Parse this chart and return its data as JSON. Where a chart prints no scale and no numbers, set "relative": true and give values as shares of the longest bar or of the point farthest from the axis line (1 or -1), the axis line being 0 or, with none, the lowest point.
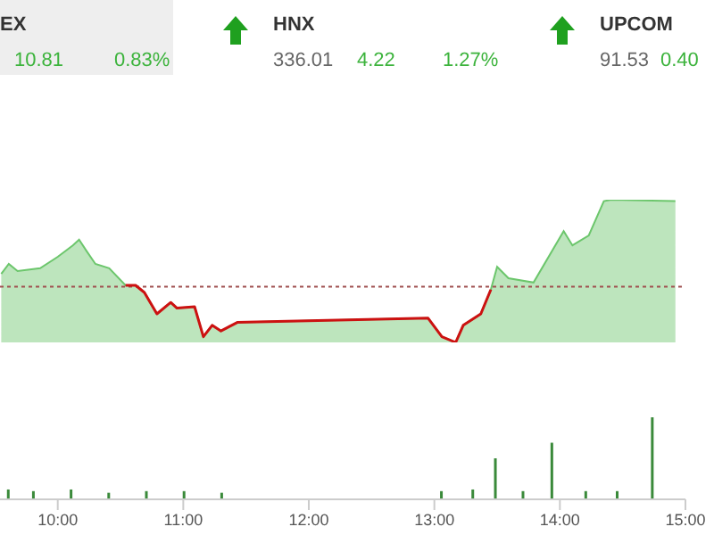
{
  "chart_data": [
    {
      "type": "area",
      "relative": true,
      "xlim": [
        9.54,
        15
      ],
      "tick_labels": false,
      "annotations": [
        "EX",
        "10.81",
        "0.83%",
        "HNX",
        "336.01",
        "4.22",
        "1.27%",
        "UPCOM",
        "91.53",
        "0.40"
      ],
      "x": [
        9.55,
        9.61,
        9.68,
        9.86,
        10.0,
        10.12,
        10.17,
        10.23,
        10.3,
        10.41,
        10.54,
        10.62,
        10.69,
        10.79,
        10.9,
        10.95,
        11.09,
        11.16,
        11.23,
        11.3,
        11.43,
        12.95,
        13.06,
        13.17,
        13.23,
        13.37,
        13.45,
        13.5,
        13.59,
        13.79,
        14.03,
        14.1,
        14.23,
        14.35,
        14.41,
        14.92
      ],
      "series": [
        {
          "color": "#6cc66c",
          "values": [
            0.48,
            0.55,
            0.5,
            0.52,
            0.6,
            0.68,
            0.72,
            0.64,
            0.55,
            0.52,
            0.4,
            0.4,
            0.35,
            0.2,
            0.28,
            0.24,
            0.25,
            0.04,
            0.12,
            0.08,
            0.14,
            0.17,
            0.04,
            0,
            0.12,
            0.2,
            0.37,
            0.53,
            0.45,
            0.42,
            0.78,
            0.68,
            0.75,
            0.99,
            1,
            0.99
          ]
        },
        {
          "type": "line",
          "color": "#cc1111",
          "values": [
            null,
            null,
            null,
            null,
            null,
            null,
            null,
            null,
            null,
            null,
            0.4,
            0.4,
            0.35,
            0.2,
            0.28,
            0.24,
            0.25,
            0.04,
            0.12,
            0.08,
            0.14,
            0.17,
            0.04,
            0,
            0.12,
            0.2,
            0.37,
            null,
            null,
            null,
            null,
            null,
            null,
            null,
            null,
            null
          ]
        }
      ],
      "ref_lines": [
        {
          "axis": "y",
          "value": 0.39,
          "color": "#a05050",
          "line_style": "dotted"
        }
      ]
    },
    {
      "type": "bar",
      "relative": true,
      "xlim": [
        9.54,
        15
      ],
      "xticks": [
        {
          "value": 10,
          "label": "10:00"
        },
        {
          "value": 11,
          "label": "11:00"
        },
        {
          "value": 12,
          "label": "12:00"
        },
        {
          "value": 13,
          "label": "13:00"
        },
        {
          "value": 14,
          "label": "14:00"
        },
        {
          "value": 15,
          "label": "15:00"
        }
      ],
      "x": [
        9.6,
        9.8,
        10.1,
        10.4,
        10.7,
        11.0,
        11.3,
        13.05,
        13.3,
        13.48,
        13.7,
        13.93,
        14.2,
        14.45,
        14.73
      ],
      "series": [
        {
          "color": "#3a8a3a",
          "values": [
            0.12,
            0.1,
            0.12,
            0.08,
            0.1,
            0.1,
            0.08,
            0.1,
            0.12,
            0.5,
            0.1,
            0.69,
            0.1,
            0.1,
            1
          ]
        }
      ]
    }
  ]
}
